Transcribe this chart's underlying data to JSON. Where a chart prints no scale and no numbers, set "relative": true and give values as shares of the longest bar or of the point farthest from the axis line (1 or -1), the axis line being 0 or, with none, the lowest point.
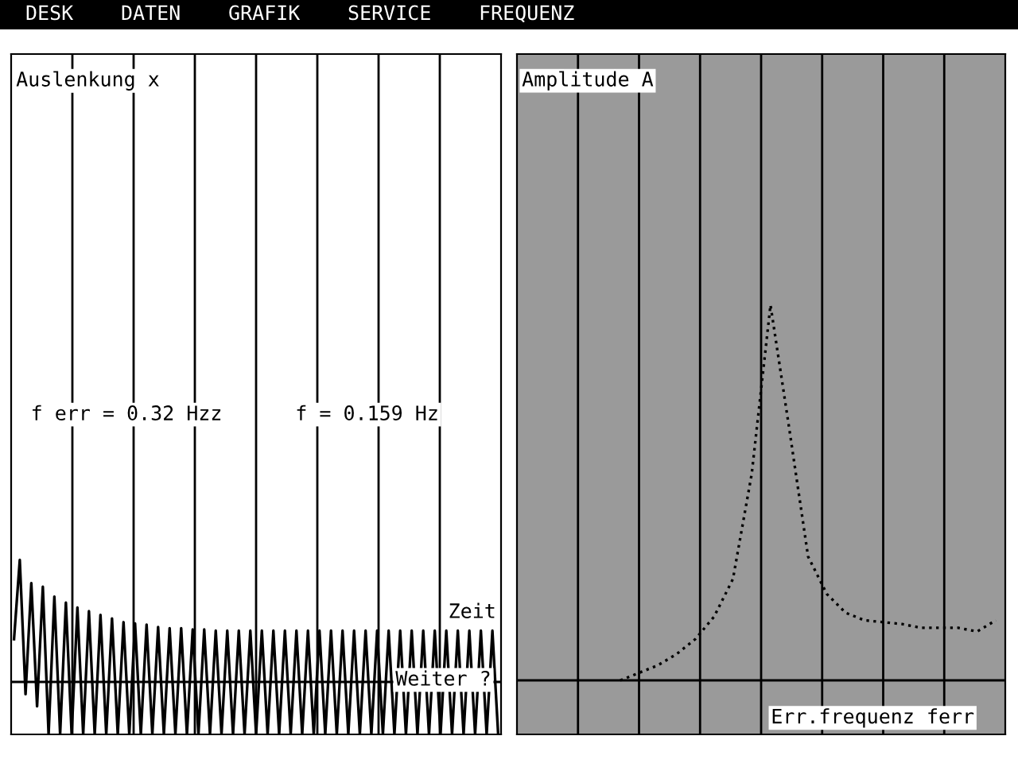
{
  "chart_data": [
    {
      "type": "line",
      "title": "Auslenkung x",
      "xlabel": "Zeit",
      "relative": true,
      "grid": "x",
      "legend": false,
      "line_style": "solid",
      "annotations": [
        "f err = 0.32 Hzz",
        "f = 0.159 Hz",
        "Weiter ?",
        "DESK",
        "DATEN",
        "GRAFIK",
        "SERVICE",
        "FREQUENZ"
      ],
      "categories": [
        null,
        null,
        null,
        null,
        null,
        null,
        null,
        null,
        null,
        null,
        null,
        null,
        null,
        null,
        null,
        null,
        null,
        null,
        null,
        null,
        null,
        null,
        null,
        null,
        null,
        null,
        null,
        null,
        null,
        null,
        null,
        null,
        null,
        null,
        null,
        null,
        null,
        null,
        null,
        null,
        null,
        null,
        null,
        null,
        null,
        null,
        null,
        null,
        null,
        null,
        null,
        null,
        null,
        null,
        null,
        null,
        null,
        null,
        null,
        null,
        null,
        null,
        null,
        null,
        null,
        null,
        null,
        null,
        null,
        null,
        null,
        null,
        null,
        null,
        null,
        null,
        null,
        null,
        null,
        null,
        null,
        null,
        null,
        null,
        null
      ],
      "series": [
        {
          "color": "#000000",
          "values": [
            0.35,
            1,
            -0.1,
            0.81,
            -0.2,
            0.78,
            -0.43,
            0.7,
            -0.43,
            0.65,
            -0.43,
            0.61,
            -0.43,
            0.58,
            -0.43,
            0.55,
            -0.43,
            0.52,
            -0.43,
            0.49,
            -0.43,
            0.48,
            -0.43,
            0.47,
            -0.43,
            0.45,
            -0.43,
            0.44,
            -0.43,
            0.44,
            -0.43,
            0.43,
            -0.43,
            0.43,
            -0.43,
            0.42,
            -0.43,
            0.42,
            -0.43,
            0.42,
            -0.43,
            0.42,
            -0.43,
            0.42,
            -0.43,
            0.42,
            -0.43,
            0.42,
            -0.43,
            0.42,
            -0.43,
            0.42,
            -0.43,
            0.42,
            -0.43,
            0.42,
            -0.43,
            0.42,
            -0.43,
            0.42,
            -0.43,
            0.42,
            -0.43,
            0.42,
            -0.43,
            0.42,
            -0.43,
            0.42,
            -0.43,
            0.42,
            -0.43,
            0.42,
            -0.43,
            0.42,
            -0.43,
            0.42,
            -0.43,
            0.42,
            -0.43,
            0.42,
            -0.43,
            0.42,
            -0.43,
            0.42,
            -0.43
          ]
        }
      ]
    },
    {
      "type": "line",
      "title": "Amplitude A",
      "xlabel": "Err.frequenz ferr",
      "relative": true,
      "grid": "x",
      "legend": false,
      "line_style": "dotted",
      "categories": [
        null,
        null,
        null,
        null,
        null,
        null,
        null,
        null,
        null,
        null,
        null,
        null,
        null,
        null,
        null,
        null,
        null,
        null,
        null,
        null,
        null,
        null,
        null,
        null,
        null,
        null
      ],
      "series": [
        {
          "color": "#000000",
          "values": [
            null,
            null,
            null,
            null,
            null,
            0,
            0.02,
            0.04,
            0.07,
            0.11,
            0.17,
            0.27,
            0.55,
            1,
            0.67,
            0.33,
            0.23,
            0.18,
            0.16,
            0.155,
            0.15,
            0.14,
            0.14,
            0.14,
            0.13,
            0.16
          ]
        }
      ]
    }
  ]
}
